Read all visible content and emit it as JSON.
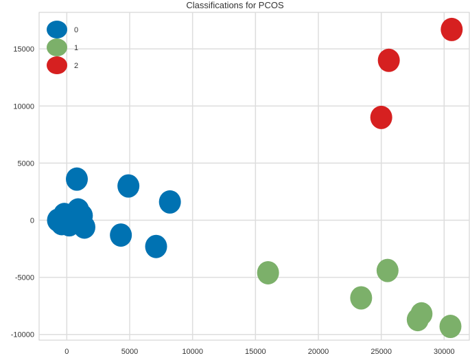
{
  "chart_data": {
    "type": "scatter",
    "title": "Classifications for PCOS",
    "xlabel": "",
    "ylabel": "",
    "xlim": [
      -2200,
      32000
    ],
    "ylim": [
      -10500,
      18200
    ],
    "xticks": [
      0,
      5000,
      10000,
      15000,
      20000,
      25000,
      30000
    ],
    "yticks": [
      -10000,
      -5000,
      0,
      5000,
      10000,
      15000
    ],
    "grid": true,
    "legend_position": "top-left",
    "series": [
      {
        "name": "0",
        "color": "#0072b2",
        "points": [
          [
            800,
            3600
          ],
          [
            4900,
            3000
          ],
          [
            8200,
            1600
          ],
          [
            -700,
            0
          ],
          [
            -200,
            500
          ],
          [
            300,
            300
          ],
          [
            900,
            900
          ],
          [
            1200,
            400
          ],
          [
            -400,
            -300
          ],
          [
            200,
            -400
          ],
          [
            700,
            -200
          ],
          [
            1100,
            -300
          ],
          [
            1400,
            -600
          ],
          [
            4300,
            -1300
          ],
          [
            7100,
            -2300
          ]
        ]
      },
      {
        "name": "1",
        "color": "#7cb06a",
        "points": [
          [
            16000,
            -4600
          ],
          [
            25500,
            -4400
          ],
          [
            23400,
            -6800
          ],
          [
            28200,
            -8200
          ],
          [
            27900,
            -8700
          ],
          [
            30500,
            -9300
          ]
        ]
      },
      {
        "name": "2",
        "color": "#d62020",
        "points": [
          [
            30600,
            16700
          ],
          [
            25600,
            14000
          ],
          [
            25000,
            9000
          ]
        ]
      }
    ]
  }
}
